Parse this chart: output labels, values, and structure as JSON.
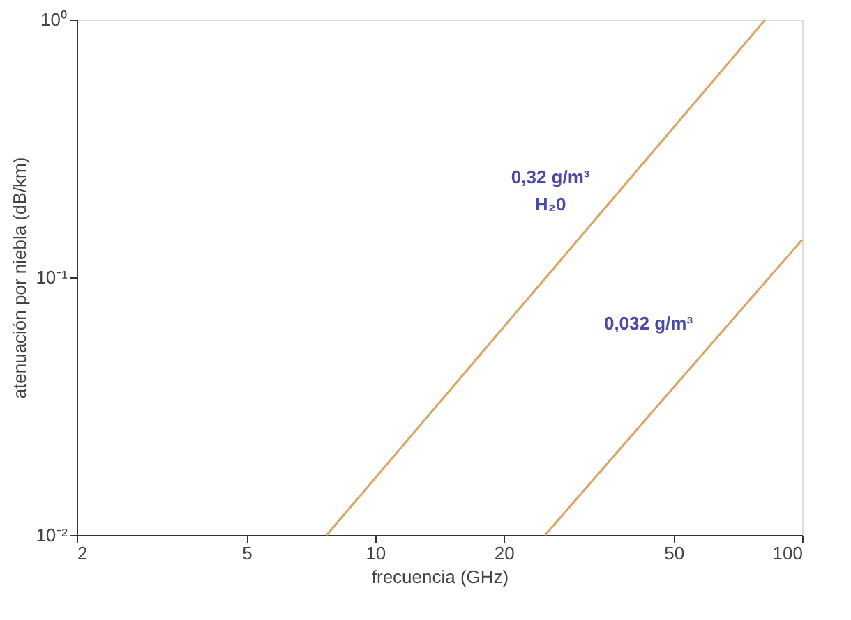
{
  "chart_data": {
    "type": "line",
    "xlabel": "frecuencia (GHz)",
    "ylabel": "atenuación por niebla (dB/km)",
    "log": "xy",
    "grid": false,
    "marker": "none",
    "line_style": "solid",
    "xlim": [
      2,
      100
    ],
    "xticks": [
      2,
      5,
      10,
      20,
      50,
      100
    ],
    "ylim": [
      0.01,
      1
    ],
    "yticks": [
      {
        "value": 0.01,
        "label": "10⁻²"
      },
      {
        "value": 0.1,
        "label": "10⁻¹"
      },
      {
        "value": 1,
        "label": "10⁰"
      }
    ],
    "series": [
      {
        "color": "#d8a868",
        "x": [
          7.7,
          82
        ],
        "values": [
          0.01,
          1
        ]
      },
      {
        "color": "#d8a868",
        "x": [
          25,
          100
        ],
        "values": [
          0.01,
          0.14
        ]
      }
    ],
    "annotations": [
      "0,32 g/m³",
      "H₂0",
      "0,032 g/m³"
    ]
  }
}
